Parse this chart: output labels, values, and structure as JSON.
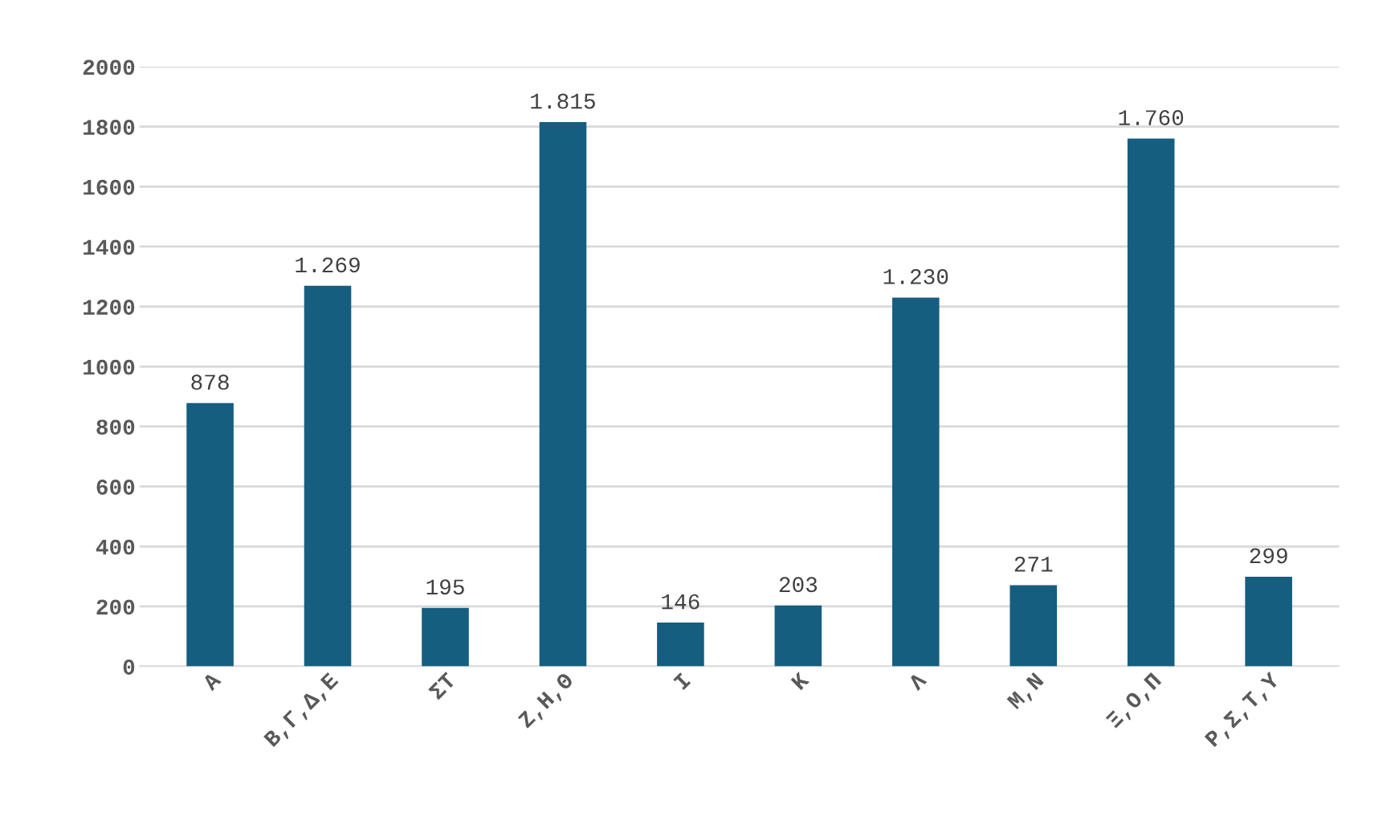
{
  "chart_data": {
    "type": "bar",
    "categories": [
      "Α",
      "Β,Γ,Δ,Ε",
      "ΣΤ",
      "Ζ,Η,Θ",
      "Ι",
      "Κ",
      "Λ",
      "Μ,Ν",
      "Ξ,Ο,Π",
      "Ρ,Σ,Τ,Υ"
    ],
    "values": [
      878,
      1269,
      195,
      1815,
      146,
      203,
      1230,
      271,
      1760,
      299
    ],
    "value_labels": [
      "878",
      "1.269",
      "195",
      "1.815",
      "146",
      "203",
      "1.230",
      "271",
      "1.760",
      "299"
    ],
    "color": "#155e80",
    "ylim": [
      0,
      2000
    ],
    "yticks": [
      0,
      200,
      400,
      600,
      800,
      1000,
      1200,
      1400,
      1600,
      1800,
      2000
    ],
    "grid": "y"
  }
}
